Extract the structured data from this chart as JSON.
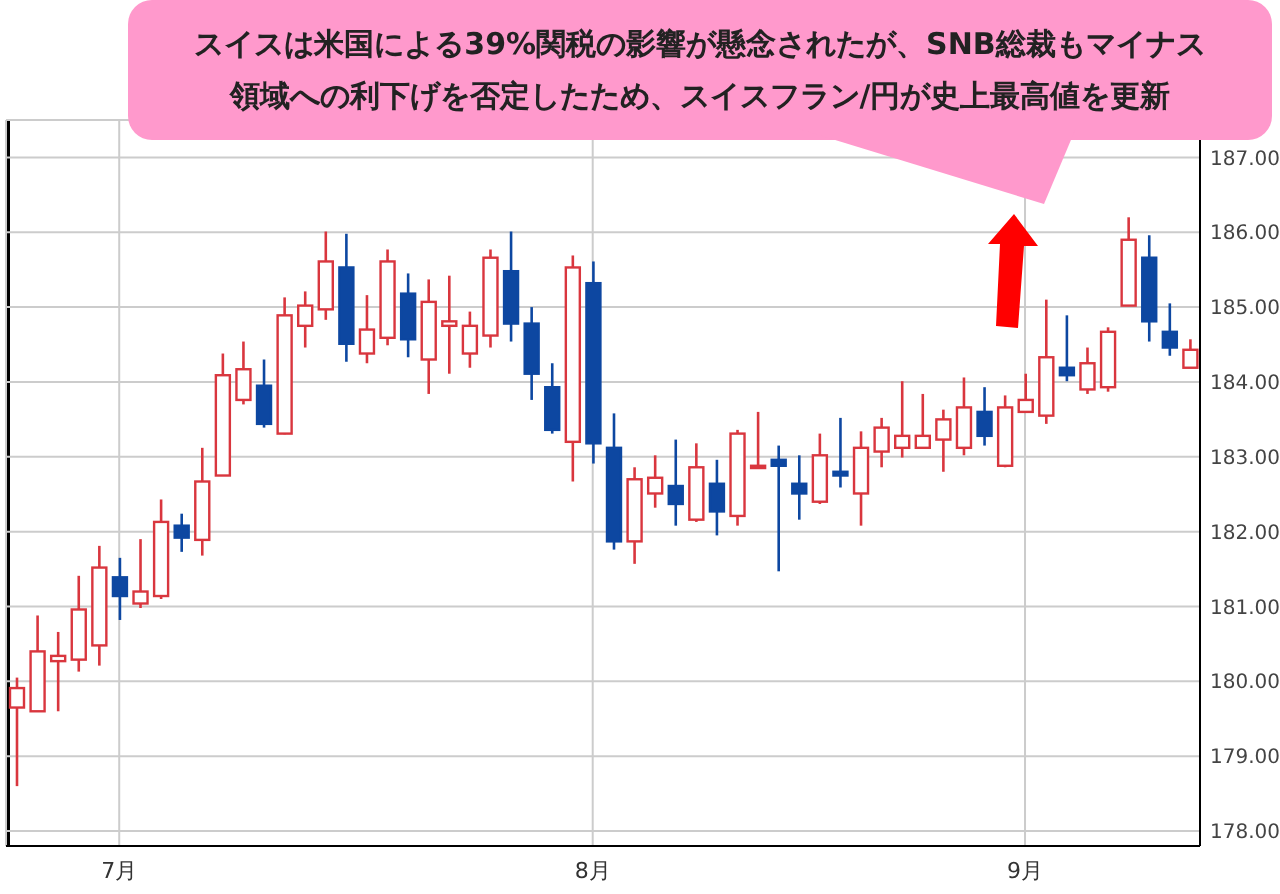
{
  "chart_data": {
    "type": "candlestick",
    "title": "スイスは米国による39%関税の影響が懸念されたが、SNB総裁もマイナス領域への利下げを否定したため、スイスフラン/円が史上最高値を更新",
    "categories": [
      null,
      null,
      null,
      null,
      null,
      "7月",
      null,
      null,
      null,
      null,
      null,
      null,
      null,
      null,
      null,
      null,
      null,
      null,
      null,
      null,
      null,
      null,
      null,
      null,
      null,
      null,
      null,
      null,
      "8月",
      null,
      null,
      null,
      null,
      null,
      null,
      null,
      null,
      null,
      null,
      null,
      null,
      null,
      null,
      null,
      null,
      null,
      null,
      null,
      null,
      "9月",
      null,
      null,
      null,
      null,
      null,
      null,
      null,
      null
    ],
    "ohlc": [
      [
        179.65,
        180.05,
        178.6,
        179.91
      ],
      [
        179.6,
        180.88,
        179.6,
        180.4
      ],
      [
        180.27,
        180.66,
        179.6,
        180.34
      ],
      [
        180.29,
        181.41,
        180.13,
        180.96
      ],
      [
        180.48,
        181.81,
        180.21,
        181.52
      ],
      [
        181.39,
        181.65,
        180.82,
        181.14
      ],
      [
        181.04,
        181.9,
        180.98,
        181.2
      ],
      [
        181.14,
        182.43,
        181.1,
        182.13
      ],
      [
        182.08,
        182.24,
        181.73,
        181.92
      ],
      [
        181.89,
        183.12,
        181.68,
        182.67
      ],
      [
        182.75,
        184.38,
        182.75,
        184.09
      ],
      [
        183.76,
        184.54,
        183.7,
        184.17
      ],
      [
        183.95,
        184.3,
        183.39,
        183.44
      ],
      [
        183.31,
        185.13,
        183.3,
        184.89
      ],
      [
        184.75,
        185.21,
        184.46,
        185.02
      ],
      [
        184.97,
        186.01,
        184.83,
        185.61
      ],
      [
        185.53,
        185.98,
        184.27,
        184.51
      ],
      [
        184.38,
        185.16,
        184.25,
        184.7
      ],
      [
        184.59,
        185.77,
        184.49,
        185.61
      ],
      [
        185.18,
        185.45,
        184.33,
        184.57
      ],
      [
        184.3,
        185.37,
        183.84,
        185.07
      ],
      [
        184.75,
        185.42,
        184.11,
        184.81
      ],
      [
        184.38,
        184.94,
        184.19,
        184.75
      ],
      [
        184.62,
        185.77,
        184.46,
        185.66
      ],
      [
        185.48,
        186.01,
        184.54,
        184.78
      ],
      [
        184.78,
        185.0,
        183.76,
        184.11
      ],
      [
        183.93,
        184.25,
        183.31,
        183.36
      ],
      [
        183.2,
        185.69,
        182.67,
        185.53
      ],
      [
        185.32,
        185.61,
        182.91,
        183.18
      ],
      [
        183.12,
        183.58,
        181.76,
        181.87
      ],
      [
        181.87,
        182.86,
        181.57,
        182.7
      ],
      [
        182.51,
        183.02,
        182.32,
        182.72
      ],
      [
        182.61,
        183.23,
        182.08,
        182.37
      ],
      [
        182.16,
        183.18,
        182.13,
        182.86
      ],
      [
        182.64,
        182.96,
        181.95,
        182.27
      ],
      [
        182.21,
        183.36,
        182.08,
        183.31
      ],
      [
        182.85,
        183.6,
        182.85,
        182.88
      ],
      [
        182.96,
        183.15,
        181.47,
        182.88
      ],
      [
        182.64,
        183.02,
        182.16,
        182.51
      ],
      [
        182.4,
        183.31,
        182.37,
        183.02
      ],
      [
        182.8,
        183.52,
        182.59,
        182.75
      ],
      [
        182.51,
        183.34,
        182.08,
        183.12
      ],
      [
        183.07,
        183.52,
        182.86,
        183.39
      ],
      [
        183.12,
        184.01,
        182.99,
        183.28
      ],
      [
        183.12,
        183.84,
        183.12,
        183.28
      ],
      [
        183.23,
        183.63,
        182.8,
        183.5
      ],
      [
        183.12,
        184.06,
        183.02,
        183.66
      ],
      [
        183.6,
        183.93,
        183.15,
        183.28
      ],
      [
        182.88,
        183.82,
        182.86,
        183.66
      ],
      [
        183.6,
        184.11,
        183.6,
        183.76
      ],
      [
        183.55,
        185.1,
        183.44,
        184.33
      ],
      [
        184.19,
        184.89,
        184.01,
        184.09
      ],
      [
        183.9,
        184.46,
        183.84,
        184.25
      ],
      [
        183.93,
        184.73,
        183.87,
        184.67
      ],
      [
        185.02,
        186.2,
        185.02,
        185.9
      ],
      [
        185.66,
        185.96,
        184.54,
        184.81
      ],
      [
        184.67,
        185.05,
        184.35,
        184.46
      ],
      [
        184.19,
        184.57,
        184.19,
        184.43
      ]
    ],
    "colors": [
      "#d9363e",
      "#d9363e",
      "#d9363e",
      "#d9363e",
      "#d9363e",
      "#0d47a1",
      "#d9363e",
      "#d9363e",
      "#0d47a1",
      "#d9363e",
      "#d9363e",
      "#d9363e",
      "#0d47a1",
      "#d9363e",
      "#d9363e",
      "#d9363e",
      "#0d47a1",
      "#d9363e",
      "#d9363e",
      "#0d47a1",
      "#d9363e",
      "#d9363e",
      "#d9363e",
      "#d9363e",
      "#0d47a1",
      "#0d47a1",
      "#0d47a1",
      "#d9363e",
      "#0d47a1",
      "#0d47a1",
      "#d9363e",
      "#d9363e",
      "#0d47a1",
      "#d9363e",
      "#0d47a1",
      "#d9363e",
      "#d9363e",
      "#0d47a1",
      "#0d47a1",
      "#d9363e",
      "#0d47a1",
      "#d9363e",
      "#d9363e",
      "#d9363e",
      "#d9363e",
      "#d9363e",
      "#d9363e",
      "#0d47a1",
      "#d9363e",
      "#d9363e",
      "#d9363e",
      "#0d47a1",
      "#d9363e",
      "#d9363e",
      "#d9363e",
      "#0d47a1",
      "#0d47a1",
      "#d9363e"
    ],
    "ylim": [
      177.8,
      187.5
    ],
    "yticks": [
      {
        "value": 178,
        "label": "178.00"
      },
      {
        "value": 179,
        "label": "179.00"
      },
      {
        "value": 180,
        "label": "180.00"
      },
      {
        "value": 181,
        "label": "181.00"
      },
      {
        "value": 182,
        "label": "182.00"
      },
      {
        "value": 183,
        "label": "183.00"
      },
      {
        "value": 184,
        "label": "184.00"
      },
      {
        "value": 185,
        "label": "185.00"
      },
      {
        "value": 186,
        "label": "186.00"
      },
      {
        "value": 187,
        "label": "187.00"
      }
    ],
    "grid": true
  }
}
